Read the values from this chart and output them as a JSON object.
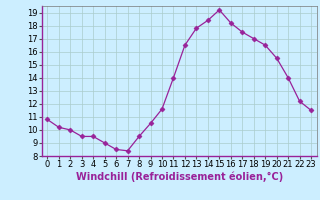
{
  "x": [
    0,
    1,
    2,
    3,
    4,
    5,
    6,
    7,
    8,
    9,
    10,
    11,
    12,
    13,
    14,
    15,
    16,
    17,
    18,
    19,
    20,
    21,
    22,
    23
  ],
  "y": [
    10.8,
    10.2,
    10.0,
    9.5,
    9.5,
    9.0,
    8.5,
    8.4,
    9.5,
    10.5,
    11.6,
    14.0,
    16.5,
    17.8,
    18.4,
    19.2,
    18.2,
    17.5,
    17.0,
    16.5,
    15.5,
    14.0,
    12.2,
    11.5
  ],
  "line_color": "#992299",
  "marker": "D",
  "marker_size": 2.5,
  "bg_color": "#cceeff",
  "grid_color": "#aacccc",
  "xlabel": "Windchill (Refroidissement éolien,°C)",
  "ylim": [
    8,
    19.5
  ],
  "xlim": [
    -0.5,
    23.5
  ],
  "yticks": [
    8,
    9,
    10,
    11,
    12,
    13,
    14,
    15,
    16,
    17,
    18,
    19
  ],
  "xticks": [
    0,
    1,
    2,
    3,
    4,
    5,
    6,
    7,
    8,
    9,
    10,
    11,
    12,
    13,
    14,
    15,
    16,
    17,
    18,
    19,
    20,
    21,
    22,
    23
  ],
  "tick_label_size": 6,
  "xlabel_size": 7,
  "label_color": "#992299"
}
